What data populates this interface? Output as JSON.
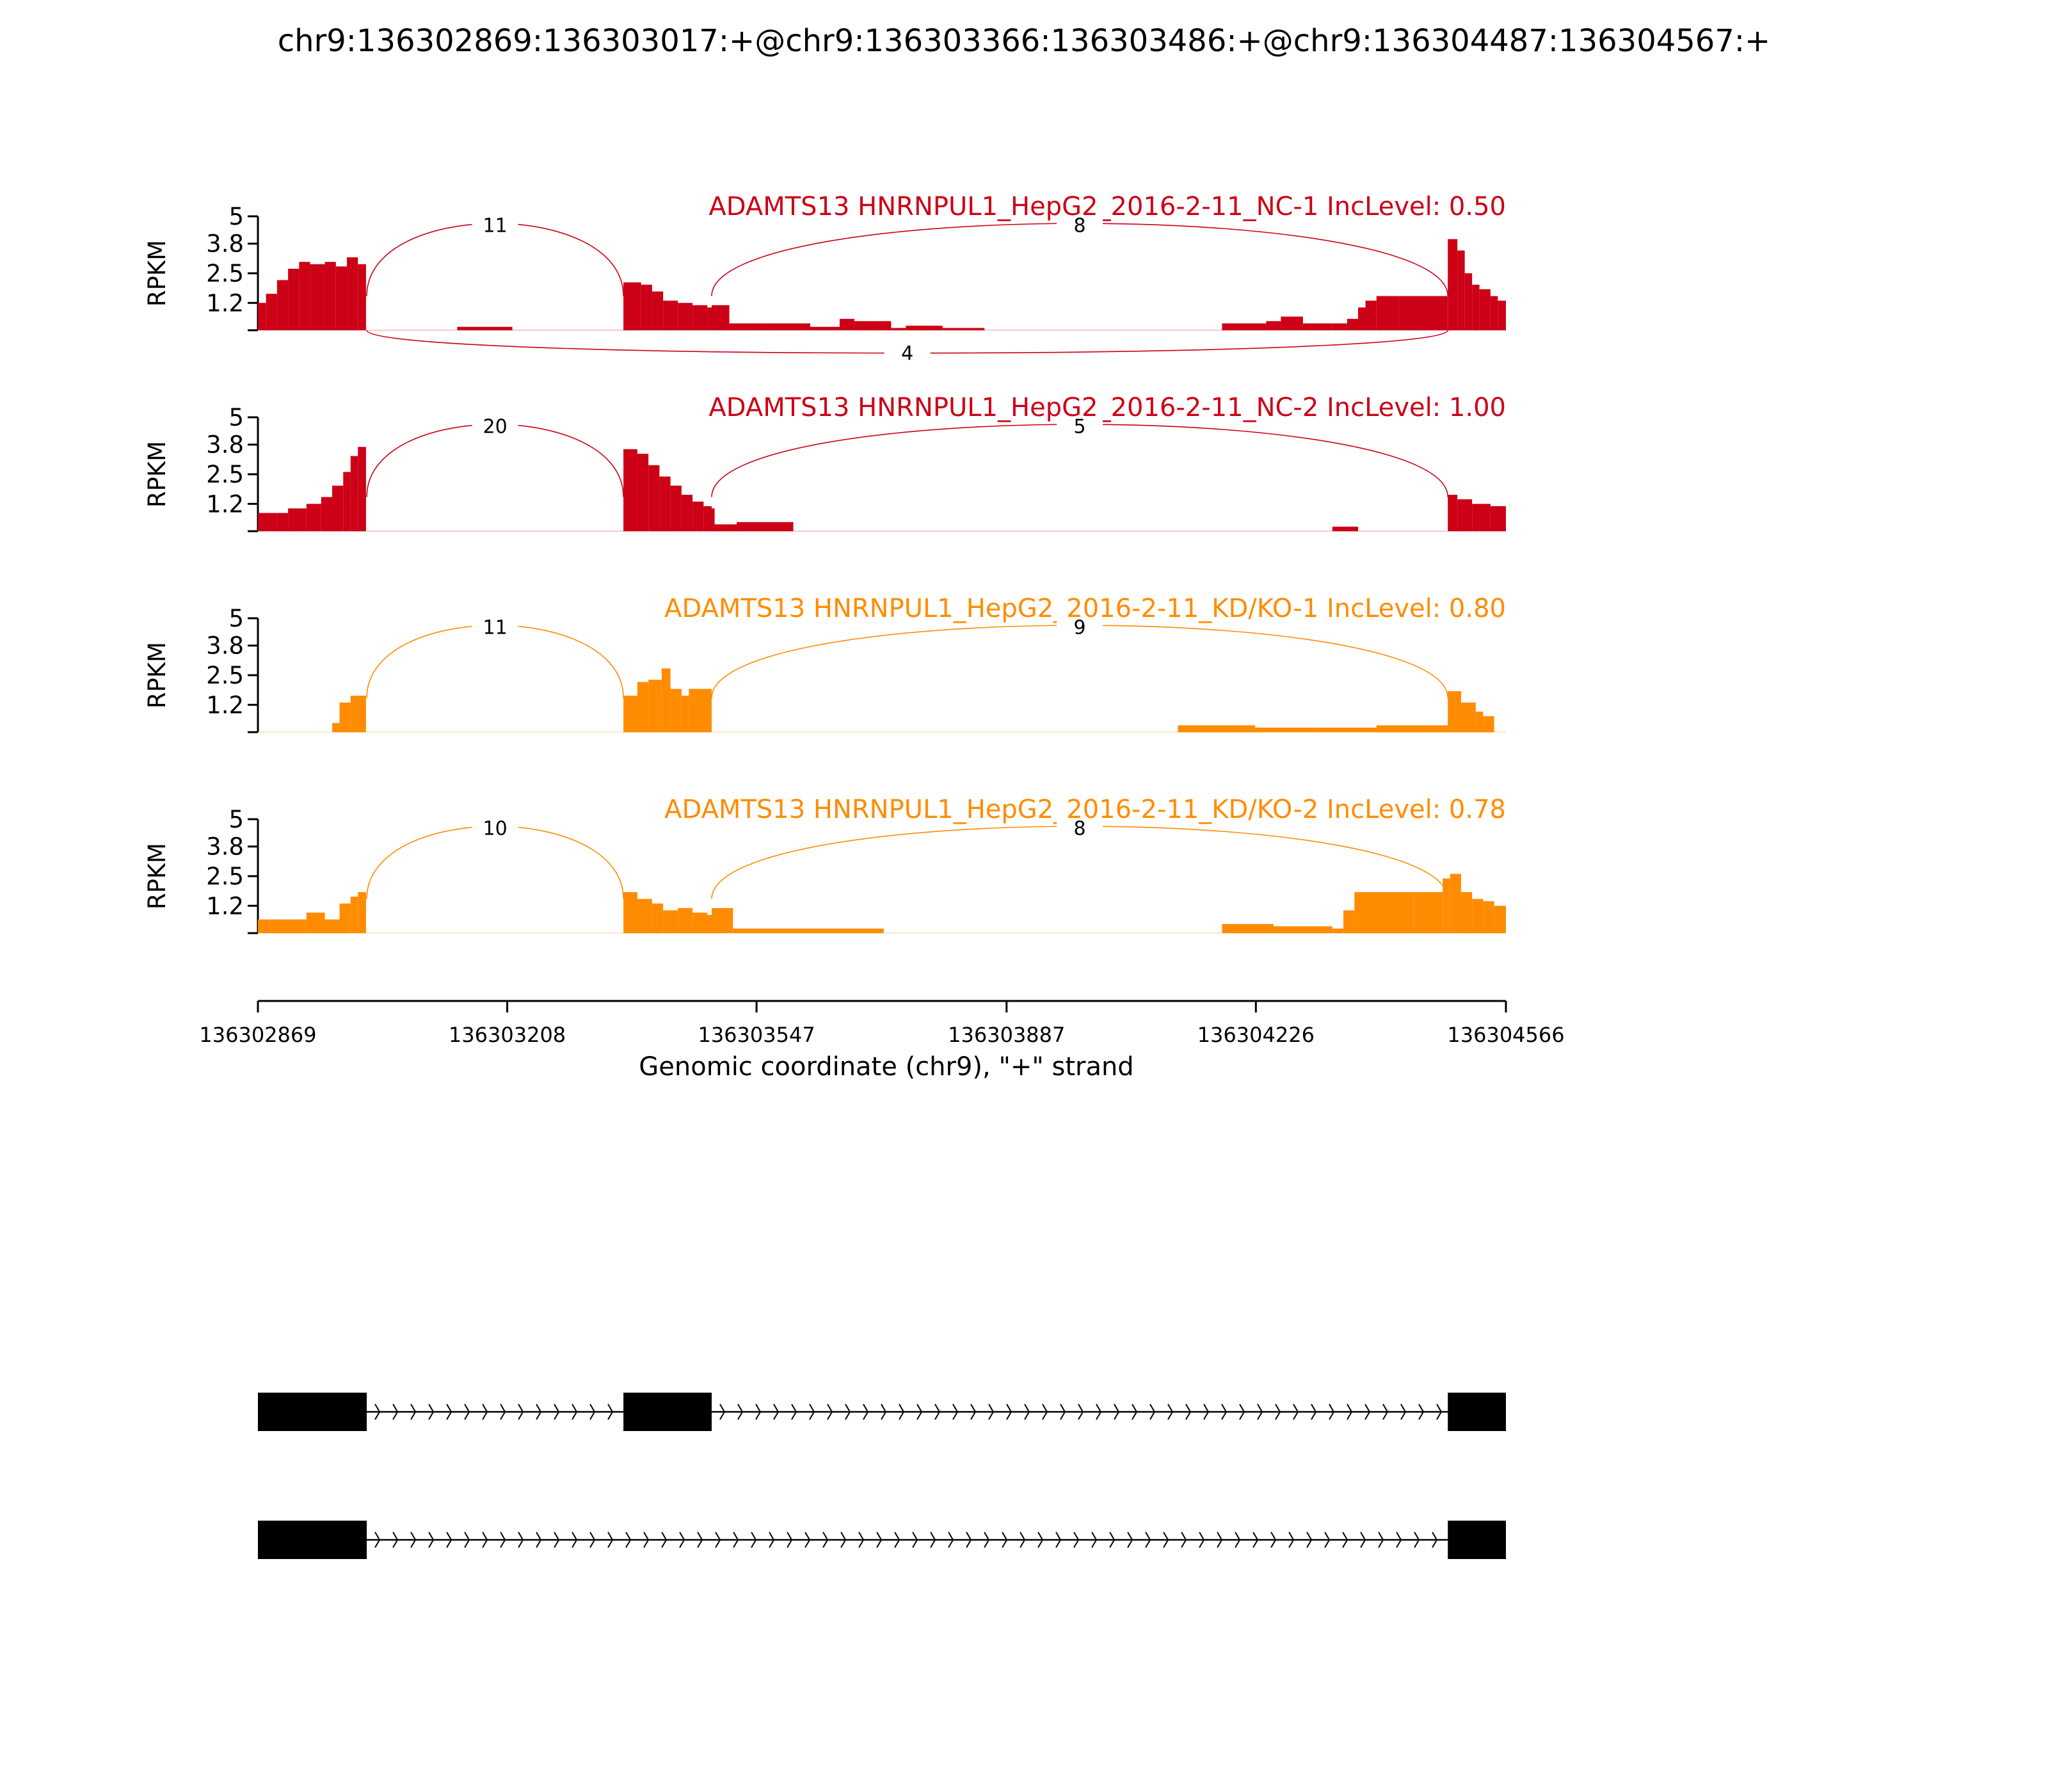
{
  "title": "chr9:136302869:136303017:+@chr9:136303366:136303486:+@chr9:136304487:136304567:+",
  "colors": {
    "nc": "#cc0016",
    "kd": "#ff8c00",
    "axis": "#000000",
    "gene": "#000000"
  },
  "chart_data": {
    "type": "area",
    "title": "chr9:136302869:136303017:+@chr9:136303366:136303486:+@chr9:136304487:136304567:+",
    "xlabel": "Genomic coordinate (chr9), \"+\" strand",
    "ylabel": "RPKM",
    "xlim": [
      136302869,
      136304566
    ],
    "x_ticks": [
      136302869,
      136303208,
      136303547,
      136303887,
      136304226,
      136304566
    ],
    "x_tick_labels": [
      "136302869",
      "136303208",
      "136303547",
      "136303887",
      "136304226",
      "136304566"
    ],
    "ylim": [
      0,
      5
    ],
    "y_ticks": [
      1.2,
      2.5,
      3.8,
      5
    ],
    "y_tick_labels": [
      "1.2",
      "2.5",
      "3.8",
      "5"
    ],
    "tracks": [
      {
        "label": "ADAMTS13 HNRNPUL1_HepG2_2016-2-11_NC-1 IncLevel: 0.50",
        "group": "nc",
        "coverage": [
          [
            136302869,
            1.2
          ],
          [
            136302880,
            1.6
          ],
          [
            136302895,
            2.2
          ],
          [
            136302910,
            2.7
          ],
          [
            136302925,
            3.0
          ],
          [
            136302940,
            2.9
          ],
          [
            136302960,
            3.0
          ],
          [
            136302975,
            2.8
          ],
          [
            136302990,
            3.2
          ],
          [
            136303005,
            2.9
          ],
          [
            136303016,
            2.8
          ],
          [
            136303140,
            0.15
          ],
          [
            136303215,
            0.15
          ],
          [
            136303366,
            2.1
          ],
          [
            136303390,
            2.0
          ],
          [
            136303405,
            1.7
          ],
          [
            136303420,
            1.3
          ],
          [
            136303440,
            1.2
          ],
          [
            136303460,
            1.1
          ],
          [
            136303480,
            1.0
          ],
          [
            136303486,
            1.1
          ],
          [
            136303510,
            0.3
          ],
          [
            136303560,
            0.3
          ],
          [
            136303580,
            0.3
          ],
          [
            136303620,
            0.15
          ],
          [
            136303660,
            0.5
          ],
          [
            136303680,
            0.4
          ],
          [
            136303730,
            0.1
          ],
          [
            136303750,
            0.2
          ],
          [
            136303800,
            0.1
          ],
          [
            136303857,
            0.1
          ],
          [
            136304180,
            0.3
          ],
          [
            136304240,
            0.4
          ],
          [
            136304260,
            0.6
          ],
          [
            136304290,
            0.3
          ],
          [
            136304330,
            0.3
          ],
          [
            136304350,
            0.5
          ],
          [
            136304365,
            1.0
          ],
          [
            136304375,
            1.3
          ],
          [
            136304390,
            1.5
          ],
          [
            136304420,
            1.5
          ],
          [
            136304486,
            1.5
          ],
          [
            136304487,
            4.0
          ],
          [
            136304500,
            3.5
          ],
          [
            136304510,
            2.5
          ],
          [
            136304520,
            2.0
          ],
          [
            136304530,
            1.8
          ],
          [
            136304545,
            1.5
          ],
          [
            136304555,
            1.3
          ],
          [
            136304566,
            1.5
          ]
        ],
        "junctions": [
          {
            "from": 136303017,
            "to": 136303366,
            "count": "11",
            "side": "above"
          },
          {
            "from": 136303486,
            "to": 136304487,
            "count": "8",
            "side": "above"
          },
          {
            "from": 136303017,
            "to": 136304487,
            "count": "4",
            "side": "below"
          }
        ]
      },
      {
        "label": "ADAMTS13 HNRNPUL1_HepG2_2016-2-11_NC-2 IncLevel: 1.00",
        "group": "nc",
        "coverage": [
          [
            136302869,
            0.8
          ],
          [
            136302895,
            0.8
          ],
          [
            136302910,
            1.0
          ],
          [
            136302935,
            1.2
          ],
          [
            136302955,
            1.5
          ],
          [
            136302970,
            2.0
          ],
          [
            136302985,
            2.6
          ],
          [
            136302995,
            3.3
          ],
          [
            136303005,
            3.7
          ],
          [
            136303016,
            3.7
          ],
          [
            136303366,
            3.6
          ],
          [
            136303385,
            3.4
          ],
          [
            136303400,
            2.9
          ],
          [
            136303415,
            2.4
          ],
          [
            136303430,
            2.0
          ],
          [
            136303445,
            1.6
          ],
          [
            136303460,
            1.3
          ],
          [
            136303475,
            1.1
          ],
          [
            136303486,
            1.0
          ],
          [
            136303490,
            0.3
          ],
          [
            136303520,
            0.4
          ],
          [
            136303570,
            0.4
          ],
          [
            136303597,
            0.2
          ],
          [
            136304330,
            0.2
          ],
          [
            136304365,
            0.4
          ],
          [
            136304487,
            1.6
          ],
          [
            136304500,
            1.4
          ],
          [
            136304520,
            1.2
          ],
          [
            136304545,
            1.1
          ],
          [
            136304566,
            1.1
          ]
        ],
        "junctions": [
          {
            "from": 136303017,
            "to": 136303366,
            "count": "20",
            "side": "above"
          },
          {
            "from": 136303486,
            "to": 136304487,
            "count": "5",
            "side": "above"
          }
        ]
      },
      {
        "label": "ADAMTS13 HNRNPUL1_HepG2_2016-2-11_KD/KO-1 IncLevel: 0.80",
        "group": "kd",
        "coverage": [
          [
            136302970,
            0.4
          ],
          [
            136302980,
            1.3
          ],
          [
            136302995,
            1.6
          ],
          [
            136303016,
            1.6
          ],
          [
            136303366,
            1.6
          ],
          [
            136303385,
            2.2
          ],
          [
            136303400,
            2.3
          ],
          [
            136303418,
            2.8
          ],
          [
            136303430,
            1.9
          ],
          [
            136303445,
            1.6
          ],
          [
            136303455,
            1.9
          ],
          [
            136303486,
            1.9
          ],
          [
            136304120,
            0.3
          ],
          [
            136304225,
            0.2
          ],
          [
            136304310,
            0.2
          ],
          [
            136304390,
            0.3
          ],
          [
            136304487,
            1.8
          ],
          [
            136304505,
            1.3
          ],
          [
            136304525,
            0.9
          ],
          [
            136304535,
            0.7
          ],
          [
            136304550,
            0.1
          ]
        ],
        "junctions": [
          {
            "from": 136303017,
            "to": 136303366,
            "count": "11",
            "side": "above"
          },
          {
            "from": 136303486,
            "to": 136304487,
            "count": "9",
            "side": "above"
          }
        ]
      },
      {
        "label": "ADAMTS13 HNRNPUL1_HepG2_2016-2-11_KD/KO-2 IncLevel: 0.78",
        "group": "kd",
        "coverage": [
          [
            136302869,
            0.6
          ],
          [
            136302885,
            0.6
          ],
          [
            136302935,
            0.9
          ],
          [
            136302960,
            0.6
          ],
          [
            136302980,
            1.3
          ],
          [
            136302995,
            1.6
          ],
          [
            136303005,
            1.8
          ],
          [
            136303016,
            1.8
          ],
          [
            136303366,
            1.8
          ],
          [
            136303385,
            1.5
          ],
          [
            136303405,
            1.3
          ],
          [
            136303420,
            1.0
          ],
          [
            136303440,
            1.1
          ],
          [
            136303460,
            0.9
          ],
          [
            136303480,
            0.8
          ],
          [
            136303486,
            1.1
          ],
          [
            136303515,
            0.2
          ],
          [
            136303610,
            0.2
          ],
          [
            136303640,
            0.2
          ],
          [
            136303720,
            0.2
          ],
          [
            136304180,
            0.4
          ],
          [
            136304250,
            0.3
          ],
          [
            136304330,
            0.2
          ],
          [
            136304345,
            1.0
          ],
          [
            136304360,
            1.8
          ],
          [
            136304440,
            1.8
          ],
          [
            136304480,
            2.4
          ],
          [
            136304490,
            2.6
          ],
          [
            136304505,
            1.8
          ],
          [
            136304520,
            1.5
          ],
          [
            136304535,
            1.4
          ],
          [
            136304550,
            1.2
          ],
          [
            136304566,
            1.4
          ]
        ],
        "junctions": [
          {
            "from": 136303017,
            "to": 136303366,
            "count": "10",
            "side": "above"
          },
          {
            "from": 136303486,
            "to": 136304487,
            "count": "8",
            "side": "above"
          }
        ]
      }
    ],
    "isoforms": [
      {
        "exons": [
          [
            136302869,
            136303017
          ],
          [
            136303366,
            136303486
          ],
          [
            136304487,
            136304566
          ]
        ]
      },
      {
        "exons": [
          [
            136302869,
            136303017
          ],
          [
            136304487,
            136304566
          ]
        ]
      }
    ]
  }
}
